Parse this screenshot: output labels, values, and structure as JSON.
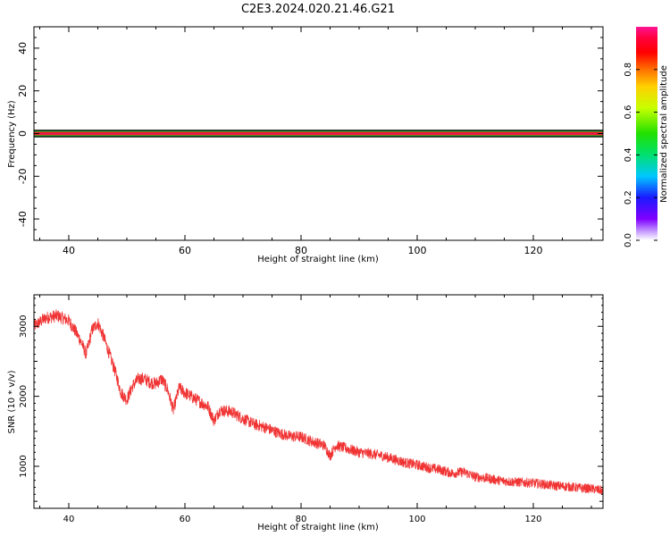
{
  "title": "C2E3.2024.020.21.46.G21",
  "colors": {
    "snr_line": "#f03333",
    "axis": "#000000",
    "band_dark": "#111111",
    "band_green": "#00cc33",
    "band_red": "#ff1f1f",
    "band_core": "#e2145a"
  },
  "chart_data": [
    {
      "id": "spectrogram",
      "type": "heatmap",
      "xlabel": "Height of straight line (km)",
      "ylabel": "Frequency (Hz)",
      "xlim": [
        34,
        132
      ],
      "ylim": [
        -50,
        50
      ],
      "xticks": [
        40,
        60,
        80,
        100,
        120
      ],
      "yticks": [
        -40,
        -20,
        0,
        20,
        40
      ],
      "xtick_labels": [
        "40",
        "60",
        "80",
        "100",
        "120"
      ],
      "ytick_labels": [
        "-40",
        "-20",
        "0",
        "20",
        "40"
      ],
      "signal_band": {
        "frequency_center": 0,
        "layers": [
          {
            "halfwidth": 1.8,
            "color": "#111111"
          },
          {
            "halfwidth": 1.2,
            "color": "#00cc33"
          },
          {
            "halfwidth": 0.8,
            "color": "#ff1f1f"
          },
          {
            "halfwidth": 0.3,
            "color": "#e2145a"
          }
        ]
      },
      "colorbar": {
        "label": "Normalized spectral amplitude",
        "range": [
          0,
          1
        ],
        "ticks": [
          0.0,
          0.2,
          0.4,
          0.6,
          0.8
        ],
        "tick_labels": [
          "0.0",
          "0.2",
          "0.4",
          "0.6",
          "0.8"
        ]
      }
    },
    {
      "id": "snr",
      "type": "line",
      "xlabel": "Height of straight line (km)",
      "ylabel": "SNR (10 * v/v)",
      "xlim": [
        34,
        132
      ],
      "ylim": [
        400,
        3450
      ],
      "xticks": [
        40,
        60,
        80,
        100,
        120
      ],
      "yticks": [
        1000,
        2000,
        3000
      ],
      "xtick_labels": [
        "40",
        "60",
        "80",
        "100",
        "120"
      ],
      "ytick_labels": [
        "1000",
        "2000",
        "3000"
      ],
      "noise_amplitude": 90,
      "series": [
        {
          "x": [
            34,
            36,
            38,
            40,
            41,
            42,
            43,
            44,
            45,
            46,
            47,
            48,
            49,
            50,
            51,
            52,
            53,
            54,
            55,
            56,
            57,
            58,
            59,
            60,
            62,
            64,
            65,
            66,
            68,
            70,
            72,
            74,
            76,
            78,
            80,
            82,
            84,
            85,
            86,
            88,
            90,
            92,
            94,
            96,
            98,
            100,
            102,
            104,
            106,
            108,
            110,
            112,
            114,
            116,
            118,
            120,
            122,
            124,
            126,
            128,
            130,
            132
          ],
          "y": [
            3000,
            3120,
            3150,
            3080,
            2950,
            2800,
            2600,
            2950,
            3050,
            2850,
            2600,
            2350,
            2050,
            1950,
            2150,
            2250,
            2250,
            2200,
            2180,
            2250,
            2100,
            1800,
            2120,
            2050,
            1950,
            1850,
            1650,
            1800,
            1780,
            1680,
            1600,
            1550,
            1480,
            1430,
            1420,
            1350,
            1300,
            1150,
            1300,
            1250,
            1200,
            1180,
            1150,
            1100,
            1050,
            1020,
            980,
            950,
            900,
            920,
            850,
            830,
            800,
            780,
            770,
            760,
            740,
            720,
            710,
            690,
            680,
            650
          ]
        }
      ]
    }
  ]
}
